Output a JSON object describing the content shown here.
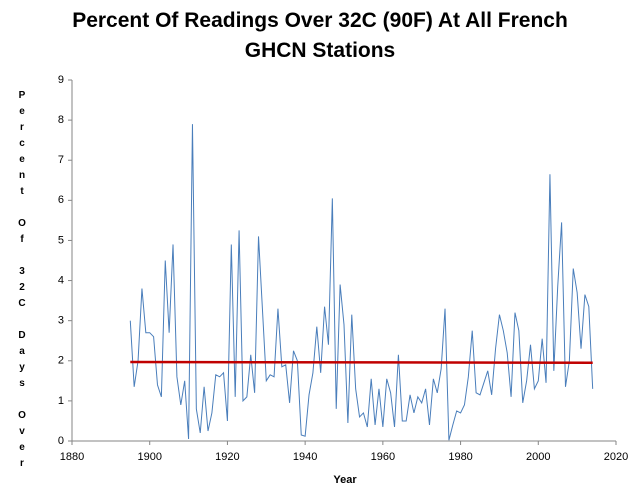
{
  "chart_data": {
    "type": "line",
    "title": "Percent Of Readings Over 32C (90F) At All French GHCN Stations",
    "xlabel": "Year",
    "ylabel": "Percent Of 32C Days Over",
    "x": [
      1895,
      1896,
      1897,
      1898,
      1899,
      1900,
      1901,
      1902,
      1903,
      1904,
      1905,
      1906,
      1907,
      1908,
      1909,
      1910,
      1911,
      1912,
      1913,
      1914,
      1915,
      1916,
      1917,
      1918,
      1919,
      1920,
      1921,
      1922,
      1923,
      1924,
      1925,
      1926,
      1927,
      1928,
      1929,
      1930,
      1931,
      1932,
      1933,
      1934,
      1935,
      1936,
      1937,
      1938,
      1939,
      1940,
      1941,
      1942,
      1943,
      1944,
      1945,
      1946,
      1947,
      1948,
      1949,
      1950,
      1951,
      1952,
      1953,
      1954,
      1955,
      1956,
      1957,
      1958,
      1959,
      1960,
      1961,
      1962,
      1963,
      1964,
      1965,
      1966,
      1967,
      1968,
      1969,
      1970,
      1971,
      1972,
      1973,
      1974,
      1975,
      1976,
      1977,
      1978,
      1979,
      1980,
      1981,
      1982,
      1983,
      1984,
      1985,
      1986,
      1987,
      1988,
      1989,
      1990,
      1991,
      1992,
      1993,
      1994,
      1995,
      1996,
      1997,
      1998,
      1999,
      2000,
      2001,
      2002,
      2003,
      2004,
      2005,
      2006,
      2007,
      2008,
      2009,
      2010,
      2011,
      2012,
      2013,
      2014
    ],
    "series": [
      {
        "color": "#4a7ebb",
        "values": [
          3.0,
          1.35,
          2.0,
          3.8,
          2.7,
          2.7,
          2.6,
          1.4,
          1.1,
          4.5,
          2.7,
          4.9,
          1.6,
          0.9,
          1.5,
          0.05,
          7.9,
          0.8,
          0.2,
          1.35,
          0.25,
          0.7,
          1.65,
          1.6,
          1.7,
          0.5,
          4.9,
          1.1,
          5.25,
          1.0,
          1.1,
          2.15,
          1.2,
          5.1,
          3.3,
          1.5,
          1.65,
          1.6,
          3.3,
          1.85,
          1.9,
          0.95,
          2.25,
          2.0,
          0.15,
          0.12,
          1.15,
          1.7,
          2.85,
          1.7,
          3.35,
          2.4,
          6.05,
          0.8,
          3.9,
          2.9,
          0.45,
          3.15,
          1.3,
          0.6,
          0.7,
          0.35,
          1.55,
          0.4,
          1.3,
          0.35,
          1.55,
          1.2,
          0.35,
          2.15,
          0.5,
          0.5,
          1.15,
          0.7,
          1.1,
          0.95,
          1.3,
          0.4,
          1.55,
          1.2,
          1.8,
          3.3,
          0.02,
          0.4,
          0.75,
          0.7,
          0.9,
          1.6,
          2.75,
          1.2,
          1.15,
          1.45,
          1.75,
          1.15,
          2.3,
          3.15,
          2.75,
          2.2,
          1.1,
          3.2,
          2.75,
          0.95,
          1.5,
          2.4,
          1.3,
          1.5,
          2.55,
          1.45,
          6.65,
          1.75,
          3.85,
          5.45,
          1.35,
          2.0,
          4.3,
          3.7,
          2.3,
          3.65,
          3.35,
          1.3
        ]
      }
    ],
    "trend": {
      "x": [
        1895,
        2014
      ],
      "values": [
        1.97,
        1.95
      ],
      "color": "#c00000"
    },
    "xlim": [
      1880,
      2020
    ],
    "xticks": [
      1880,
      1900,
      1920,
      1940,
      1960,
      1980,
      2000,
      2020
    ],
    "ylim": [
      0,
      9
    ],
    "yticks": [
      0,
      1,
      2,
      3,
      4,
      5,
      6,
      7,
      8,
      9
    ],
    "grid": false
  }
}
